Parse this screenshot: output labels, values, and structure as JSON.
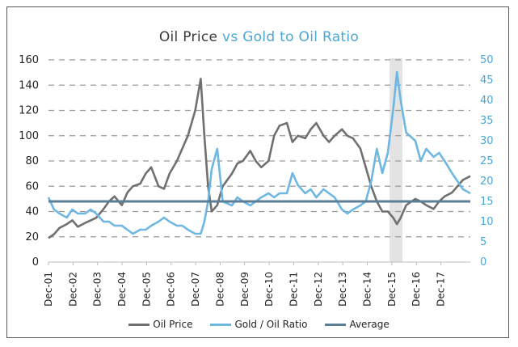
{
  "chart_data": {
    "type": "line",
    "title": {
      "part1": "Oil Price",
      "part2": " vs ",
      "part3": "Gold to Oil Ratio"
    },
    "x": [
      "Dec-01",
      "Dec-02",
      "Dec-03",
      "Dec-04",
      "Dec-05",
      "Dec-06",
      "Dec-07",
      "Dec-08",
      "Dec-09",
      "Dec-10",
      "Dec-11",
      "Dec-12",
      "Dec-13",
      "Dec-14",
      "Dec-15",
      "Dec-16",
      "Dec-17"
    ],
    "left_axis": {
      "ylim": [
        0,
        160
      ],
      "ticks": [
        "0",
        "20",
        "40",
        "60",
        "80",
        "100",
        "120",
        "140",
        "160"
      ]
    },
    "right_axis": {
      "ylim": [
        0,
        50
      ],
      "ticks": [
        "0",
        "5",
        "10",
        "15",
        "20",
        "25",
        "30",
        "35",
        "40",
        "45",
        "50"
      ]
    },
    "grid": "dashed horizontal",
    "highlight_band": {
      "from": 14.8,
      "to": 15.0
    },
    "series": [
      {
        "name": "Oil Price",
        "axis": "left",
        "color": "#707070",
        "points": [
          [
            0,
            19
          ],
          [
            0.3,
            22
          ],
          [
            0.6,
            27
          ],
          [
            1,
            30
          ],
          [
            1.3,
            33
          ],
          [
            1.6,
            28
          ],
          [
            2,
            31
          ],
          [
            2.3,
            33
          ],
          [
            2.6,
            35
          ],
          [
            3,
            42
          ],
          [
            3.3,
            48
          ],
          [
            3.6,
            52
          ],
          [
            4,
            45
          ],
          [
            4.3,
            55
          ],
          [
            4.6,
            60
          ],
          [
            5,
            62
          ],
          [
            5.3,
            70
          ],
          [
            5.6,
            75
          ],
          [
            6,
            60
          ],
          [
            6.3,
            58
          ],
          [
            6.6,
            70
          ],
          [
            7,
            80
          ],
          [
            7.3,
            90
          ],
          [
            7.6,
            100
          ],
          [
            8,
            120
          ],
          [
            8.3,
            145
          ],
          [
            8.5,
            100
          ],
          [
            8.7,
            60
          ],
          [
            8.9,
            40
          ],
          [
            9.2,
            45
          ],
          [
            9.5,
            60
          ],
          [
            10,
            70
          ],
          [
            10.3,
            78
          ],
          [
            10.6,
            80
          ],
          [
            11,
            88
          ],
          [
            11.3,
            80
          ],
          [
            11.6,
            75
          ],
          [
            12,
            80
          ],
          [
            12.3,
            100
          ],
          [
            12.6,
            108
          ],
          [
            13,
            110
          ],
          [
            13.3,
            95
          ],
          [
            13.6,
            100
          ],
          [
            14,
            98
          ],
          [
            14.3,
            105
          ],
          [
            14.6,
            110
          ],
          [
            15,
            100
          ],
          [
            15.3,
            95
          ],
          [
            15.6,
            100
          ],
          [
            16,
            105
          ],
          [
            16.3,
            100
          ],
          [
            16.6,
            98
          ],
          [
            17,
            90
          ],
          [
            17.3,
            75
          ],
          [
            17.6,
            60
          ],
          [
            17.9,
            48
          ],
          [
            18.2,
            40
          ],
          [
            18.5,
            40
          ],
          [
            18.8,
            35
          ],
          [
            19.0,
            30
          ],
          [
            19.2,
            35
          ],
          [
            19.5,
            45
          ],
          [
            20,
            50
          ],
          [
            20.3,
            48
          ],
          [
            20.6,
            45
          ],
          [
            21,
            42
          ],
          [
            21.3,
            48
          ],
          [
            21.6,
            52
          ],
          [
            22,
            55
          ],
          [
            22.3,
            60
          ],
          [
            22.6,
            65
          ],
          [
            23,
            68
          ]
        ]
      },
      {
        "name": "Gold / Oil Ratio",
        "axis": "right",
        "color": "#6db7e3",
        "points": [
          [
            0,
            16
          ],
          [
            0.3,
            13
          ],
          [
            0.6,
            12
          ],
          [
            1,
            11
          ],
          [
            1.3,
            13
          ],
          [
            1.6,
            12
          ],
          [
            2,
            12
          ],
          [
            2.3,
            13
          ],
          [
            2.6,
            12
          ],
          [
            3,
            10
          ],
          [
            3.3,
            10
          ],
          [
            3.6,
            9
          ],
          [
            4,
            9
          ],
          [
            4.3,
            8
          ],
          [
            4.6,
            7
          ],
          [
            5,
            8
          ],
          [
            5.3,
            8
          ],
          [
            5.6,
            9
          ],
          [
            6,
            10
          ],
          [
            6.3,
            11
          ],
          [
            6.6,
            10
          ],
          [
            7,
            9
          ],
          [
            7.3,
            9
          ],
          [
            7.6,
            8
          ],
          [
            8,
            7
          ],
          [
            8.3,
            7
          ],
          [
            8.5,
            10
          ],
          [
            8.7,
            15
          ],
          [
            8.9,
            23
          ],
          [
            9.2,
            28
          ],
          [
            9.5,
            15
          ],
          [
            10,
            14
          ],
          [
            10.3,
            16
          ],
          [
            10.6,
            15
          ],
          [
            11,
            14
          ],
          [
            11.3,
            15
          ],
          [
            11.6,
            16
          ],
          [
            12,
            17
          ],
          [
            12.3,
            16
          ],
          [
            12.6,
            17
          ],
          [
            13,
            17
          ],
          [
            13.3,
            22
          ],
          [
            13.6,
            19
          ],
          [
            14,
            17
          ],
          [
            14.3,
            18
          ],
          [
            14.6,
            16
          ],
          [
            15,
            18
          ],
          [
            15.3,
            17
          ],
          [
            15.6,
            16
          ],
          [
            16,
            13
          ],
          [
            16.3,
            12
          ],
          [
            16.6,
            13
          ],
          [
            17,
            14
          ],
          [
            17.3,
            15
          ],
          [
            17.6,
            20
          ],
          [
            17.9,
            28
          ],
          [
            18.2,
            22
          ],
          [
            18.5,
            27
          ],
          [
            18.8,
            38
          ],
          [
            19.0,
            47
          ],
          [
            19.2,
            40
          ],
          [
            19.5,
            32
          ],
          [
            20,
            30
          ],
          [
            20.3,
            25
          ],
          [
            20.6,
            28
          ],
          [
            21,
            26
          ],
          [
            21.3,
            27
          ],
          [
            21.6,
            25
          ],
          [
            22,
            22
          ],
          [
            22.3,
            20
          ],
          [
            22.6,
            18
          ],
          [
            23,
            17
          ]
        ]
      },
      {
        "name": "Average",
        "axis": "right",
        "color": "#5b7e96",
        "value": 15
      }
    ],
    "legend": [
      "Oil Price",
      "Gold / Oil Ratio",
      "Average"
    ],
    "legend_position": "bottom"
  }
}
